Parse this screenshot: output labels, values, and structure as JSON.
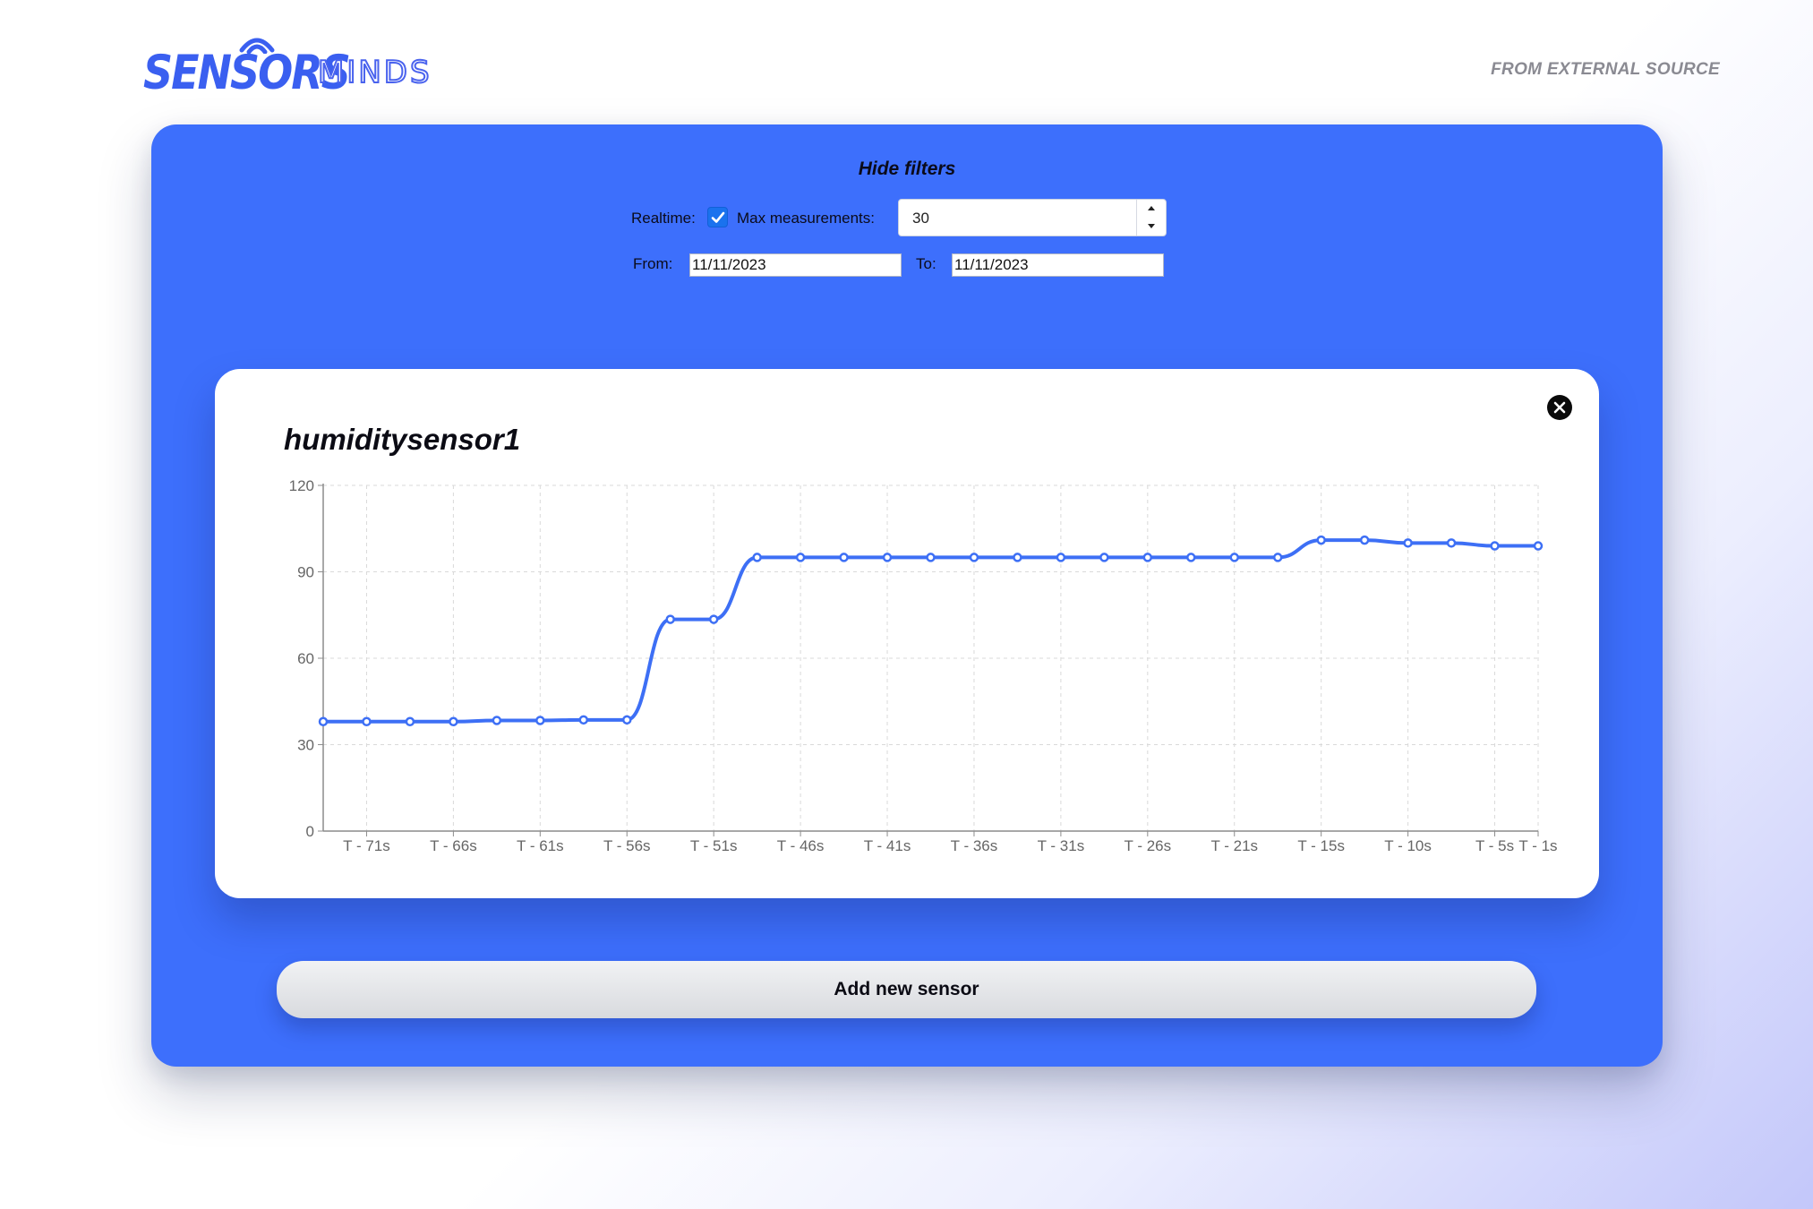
{
  "header": {
    "logo_primary": "SENSORS",
    "logo_secondary": "MINDS",
    "source_link": "FROM EXTERNAL SOURCE"
  },
  "filters": {
    "toggle_label": "Hide filters",
    "realtime_label": "Realtime:",
    "realtime_checked": true,
    "max_label": "Max measurements:",
    "max_value": "30",
    "from_label": "From:",
    "from_value": "11/11/2023",
    "to_label": "To:",
    "to_value": "11/11/2023"
  },
  "sensor_card": {
    "title": "humiditysensor1",
    "line_color": "#3d6ff5"
  },
  "chart_data": {
    "type": "line",
    "ylim": [
      0,
      120
    ],
    "yticks": [
      0,
      30,
      60,
      90,
      120
    ],
    "xticks": [
      "T - 71s",
      "T - 66s",
      "T - 61s",
      "T - 56s",
      "T - 51s",
      "T - 46s",
      "T - 41s",
      "T - 36s",
      "T - 31s",
      "T - 26s",
      "T - 21s",
      "T - 15s",
      "T - 10s",
      "T - 5s",
      "T - 1s"
    ],
    "grid": true,
    "series": [
      {
        "values": [
          38,
          38,
          38,
          38,
          38.4,
          38.4,
          38.6,
          38.6,
          73.5,
          73.5,
          95,
          95,
          95,
          95,
          95,
          95,
          95,
          95,
          95,
          95,
          95,
          95,
          95,
          101,
          101,
          100,
          100,
          99,
          99
        ]
      }
    ]
  },
  "actions": {
    "add_sensor": "Add new sensor"
  }
}
